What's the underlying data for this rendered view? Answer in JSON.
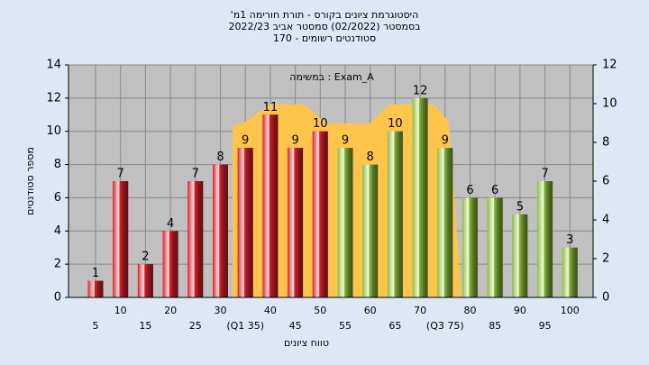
{
  "chart_data": {
    "type": "bar",
    "title": [
      "'היסטוגרמת ציונים בקורס - תורת חורימה 1מ",
      "בסמסטר  (02/2022)  סמסטר אביב 2022/23",
      "סטודנטים רשומים - 170"
    ],
    "annotation": "במשימה : Exam_A",
    "xlabel": "טווח ציונים",
    "ylabel": "מספר סטודנטים",
    "categories": [
      "5",
      "10",
      "15",
      "20",
      "25",
      "30",
      "(Q1 35)",
      "40",
      "45",
      "50",
      "55",
      "60",
      "65",
      "70",
      "(Q3 75)",
      "80",
      "85",
      "90",
      "95",
      "100"
    ],
    "values": [
      1,
      7,
      2,
      4,
      7,
      8,
      9,
      11,
      9,
      10,
      9,
      8,
      10,
      12,
      9,
      6,
      6,
      5,
      7,
      3
    ],
    "colors": [
      "#e0202a",
      "#e0202a",
      "#e0202a",
      "#e0202a",
      "#e0202a",
      "#e0202a",
      "#e0202a",
      "#e0202a",
      "#e0202a",
      "#e0202a",
      "#8cbf3a",
      "#8cbf3a",
      "#8cbf3a",
      "#8cbf3a",
      "#8cbf3a",
      "#8cbf3a",
      "#8cbf3a",
      "#8cbf3a",
      "#8cbf3a",
      "#8cbf3a"
    ],
    "ylim": [
      0,
      14
    ],
    "yticks": [
      0,
      2,
      4,
      6,
      8,
      10,
      12,
      14
    ],
    "y2lim": [
      0,
      12
    ],
    "y2ticks": [
      0,
      2,
      4,
      6,
      8,
      10,
      12
    ],
    "grid": true
  }
}
